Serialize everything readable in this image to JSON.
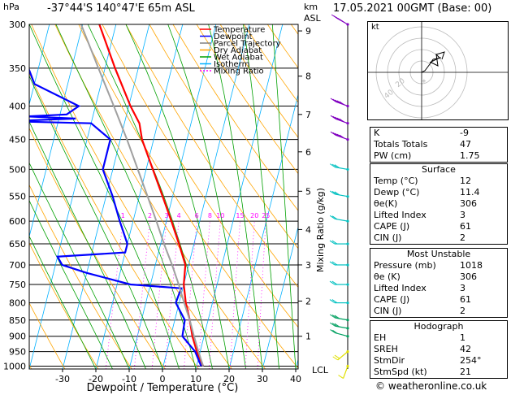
{
  "header": {
    "location": "-37°44'S  140°47'E  65m  ASL",
    "datetime": "17.05.2021  00GMT  (Base: 00)"
  },
  "axes": {
    "pressure_unit": "hPa",
    "height_unit": "km",
    "height_unit2": "ASL",
    "xlabel": "Dewpoint / Temperature (°C)",
    "mixing_ylabel": "Mixing Ratio (g/kg)",
    "lcl_label": "LCL",
    "pressure_ticks": [
      "300",
      "350",
      "400",
      "450",
      "500",
      "550",
      "600",
      "650",
      "700",
      "750",
      "800",
      "850",
      "900",
      "950",
      "1000"
    ],
    "temp_ticks": [
      "-30",
      "-20",
      "-10",
      "0",
      "10",
      "20",
      "30",
      "40"
    ],
    "km_ticks": [
      "9",
      "8",
      "7",
      "6",
      "5",
      "4",
      "3",
      "2",
      "1"
    ],
    "mixing_ratio_labels": [
      "1",
      "2",
      "3",
      "4",
      "6",
      "8",
      "10",
      "15",
      "20",
      "25"
    ]
  },
  "legend": [
    {
      "label": "Temperature",
      "color": "#ff0000"
    },
    {
      "label": "Dewpoint",
      "color": "#0000ff"
    },
    {
      "label": "Parcel Trajectory",
      "color": "#808080"
    },
    {
      "label": "Dry Adiabat",
      "color": "#ffa500"
    },
    {
      "label": "Wet Adiabat",
      "color": "#00a000"
    },
    {
      "label": "Isotherm",
      "color": "#00b0ff"
    },
    {
      "label": "Mixing Ratio",
      "color": "#ff00ff"
    }
  ],
  "hodograph": {
    "label": "kt",
    "ring_labels": [
      "20",
      "40"
    ]
  },
  "indices": [
    {
      "k": "K",
      "v": "-9"
    },
    {
      "k": "Totals Totals",
      "v": "47"
    },
    {
      "k": "PW (cm)",
      "v": "1.75"
    }
  ],
  "surface": {
    "title": "Surface",
    "rows": [
      {
        "k": "Temp (°C)",
        "v": "12"
      },
      {
        "k": "Dewp (°C)",
        "v": "11.4"
      },
      {
        "k": "θe(K)",
        "v": "306"
      },
      {
        "k": "Lifted Index",
        "v": "3"
      },
      {
        "k": "CAPE (J)",
        "v": "61"
      },
      {
        "k": "CIN (J)",
        "v": "2"
      }
    ]
  },
  "most_unstable": {
    "title": "Most Unstable",
    "rows": [
      {
        "k": "Pressure (mb)",
        "v": "1018"
      },
      {
        "k": "θe (K)",
        "v": "306"
      },
      {
        "k": "Lifted Index",
        "v": "3"
      },
      {
        "k": "CAPE (J)",
        "v": "61"
      },
      {
        "k": "CIN (J)",
        "v": "2"
      }
    ]
  },
  "hodograph_table": {
    "title": "Hodograph",
    "rows": [
      {
        "k": "EH",
        "v": "1"
      },
      {
        "k": "SREH",
        "v": "42"
      },
      {
        "k": "StmDir",
        "v": "254°"
      },
      {
        "k": "StmSpd (kt)",
        "v": "21"
      }
    ]
  },
  "credit": "© weatheronline.co.uk",
  "chart_data": {
    "type": "line",
    "title": "",
    "xlabel": "Dewpoint / Temperature (°C)",
    "ylabel": "hPa",
    "ylim": [
      1000,
      300
    ],
    "xlim": [
      -35,
      40
    ],
    "yscale": "log",
    "series": [
      {
        "name": "Temperature",
        "color": "#ff0000",
        "points": [
          [
            1000,
            12
          ],
          [
            950,
            9
          ],
          [
            900,
            6.5
          ],
          [
            850,
            4.5
          ],
          [
            800,
            2
          ],
          [
            750,
            0
          ],
          [
            700,
            -1
          ],
          [
            650,
            -4.5
          ],
          [
            600,
            -8.5
          ],
          [
            550,
            -13
          ],
          [
            500,
            -18
          ],
          [
            450,
            -23.5
          ],
          [
            425,
            -25.5
          ],
          [
            400,
            -29.5
          ],
          [
            350,
            -37
          ],
          [
            300,
            -45
          ]
        ]
      },
      {
        "name": "Dewpoint",
        "color": "#0000ff",
        "points": [
          [
            1000,
            11.4
          ],
          [
            950,
            8.5
          ],
          [
            900,
            3.5
          ],
          [
            850,
            3
          ],
          [
            800,
            -1
          ],
          [
            760,
            -0.5
          ],
          [
            750,
            -16
          ],
          [
            720,
            -30
          ],
          [
            700,
            -38
          ],
          [
            680,
            -40
          ],
          [
            670,
            -20
          ],
          [
            650,
            -20
          ],
          [
            600,
            -24
          ],
          [
            550,
            -28
          ],
          [
            500,
            -33
          ],
          [
            450,
            -33
          ],
          [
            425,
            -40
          ],
          [
            422,
            -65
          ],
          [
            420,
            -55
          ],
          [
            418,
            -45
          ],
          [
            415,
            -60
          ],
          [
            412,
            -48
          ],
          [
            400,
            -45
          ],
          [
            370,
            -60
          ],
          [
            350,
            -63
          ],
          [
            300,
            -70
          ]
        ]
      },
      {
        "name": "Parcel Trajectory",
        "color": "#a0a0a0",
        "points": [
          [
            1000,
            12
          ],
          [
            950,
            9.5
          ],
          [
            900,
            7
          ],
          [
            850,
            4.5
          ],
          [
            800,
            1.5
          ],
          [
            750,
            -1.5
          ],
          [
            700,
            -5
          ],
          [
            650,
            -9
          ],
          [
            600,
            -13
          ],
          [
            550,
            -17.5
          ],
          [
            500,
            -22.5
          ],
          [
            450,
            -28
          ],
          [
            400,
            -34.5
          ],
          [
            350,
            -42
          ],
          [
            300,
            -50.5
          ]
        ]
      }
    ],
    "wind_barbs": [
      {
        "p": 300,
        "dir": 300,
        "kt": 70
      },
      {
        "p": 400,
        "dir": 290,
        "kt": 65
      },
      {
        "p": 425,
        "dir": 290,
        "kt": 60
      },
      {
        "p": 450,
        "dir": 290,
        "kt": 55
      },
      {
        "p": 500,
        "dir": 280,
        "kt": 30
      },
      {
        "p": 550,
        "dir": 280,
        "kt": 25
      },
      {
        "p": 600,
        "dir": 280,
        "kt": 20
      },
      {
        "p": 650,
        "dir": 270,
        "kt": 20
      },
      {
        "p": 700,
        "dir": 270,
        "kt": 20
      },
      {
        "p": 750,
        "dir": 270,
        "kt": 20
      },
      {
        "p": 800,
        "dir": 270,
        "kt": 20
      },
      {
        "p": 850,
        "dir": 280,
        "kt": 25
      },
      {
        "p": 875,
        "dir": 280,
        "kt": 25
      },
      {
        "p": 900,
        "dir": 285,
        "kt": 20
      },
      {
        "p": 950,
        "dir": 230,
        "kt": 15
      },
      {
        "p": 1000,
        "dir": 200,
        "kt": 10
      }
    ]
  }
}
